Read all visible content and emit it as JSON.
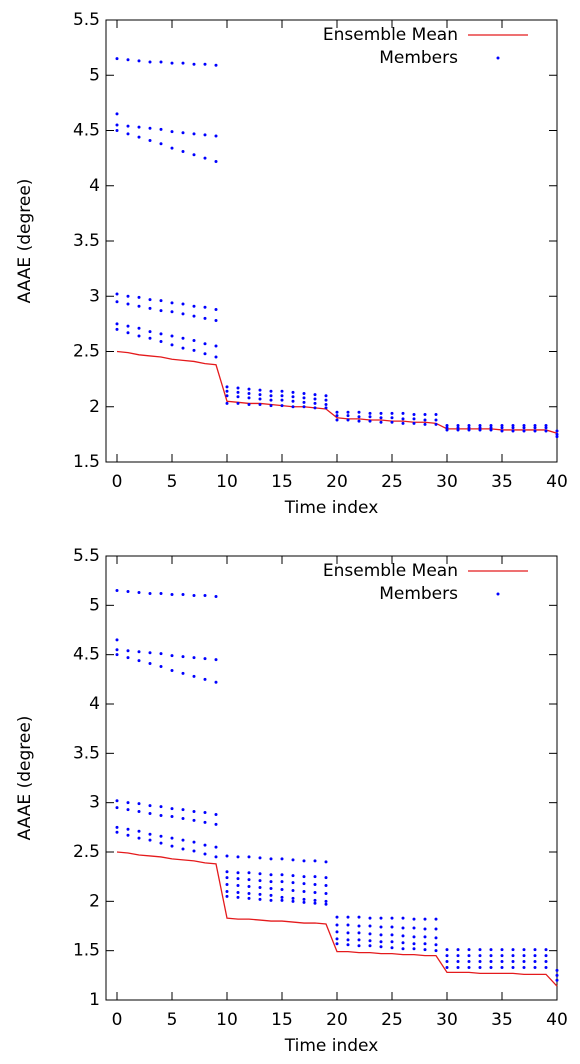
{
  "chart_data": [
    {
      "type": "line",
      "xlabel": "Time index",
      "ylabel": "AAAE (degree)",
      "xlim": [
        -1,
        40
      ],
      "ylim": [
        1.5,
        5.5
      ],
      "xticks": [
        0,
        5,
        10,
        15,
        20,
        25,
        30,
        35,
        40
      ],
      "yticks": [
        1.5,
        2,
        2.5,
        3,
        3.5,
        4,
        4.5,
        5,
        5.5
      ],
      "grid": false,
      "legend": "top-right",
      "series": [
        {
          "name": "Ensemble Mean",
          "type": "line",
          "color": "#e41a1c",
          "x": [
            0,
            1,
            2,
            3,
            4,
            5,
            6,
            7,
            8,
            9,
            10,
            11,
            12,
            13,
            14,
            15,
            16,
            17,
            18,
            19,
            20,
            21,
            22,
            23,
            24,
            25,
            26,
            27,
            28,
            29,
            30,
            31,
            32,
            33,
            34,
            35,
            36,
            37,
            38,
            39,
            40
          ],
          "values": [
            2.5,
            2.49,
            2.47,
            2.46,
            2.45,
            2.43,
            2.42,
            2.41,
            2.39,
            2.38,
            2.05,
            2.04,
            2.03,
            2.03,
            2.02,
            2.01,
            2.0,
            2.0,
            1.99,
            1.98,
            1.9,
            1.89,
            1.89,
            1.88,
            1.88,
            1.87,
            1.87,
            1.86,
            1.86,
            1.85,
            1.8,
            1.8,
            1.8,
            1.8,
            1.8,
            1.79,
            1.79,
            1.79,
            1.79,
            1.79,
            1.76
          ]
        },
        {
          "name": "Members",
          "type": "scatter",
          "color": "#0000ff",
          "x": [
            0,
            0,
            1,
            2,
            3,
            4,
            5,
            6,
            7,
            8,
            9,
            0,
            1,
            2,
            3,
            4,
            5,
            6,
            7,
            8,
            9,
            0,
            1,
            2,
            3,
            4,
            5,
            6,
            7,
            8,
            9,
            0,
            1,
            2,
            3,
            4,
            5,
            6,
            7,
            8,
            9,
            0,
            1,
            2,
            3,
            4,
            5,
            6,
            7,
            8,
            9,
            0,
            1,
            2,
            3,
            4,
            5,
            6,
            7,
            8,
            9,
            0,
            1,
            2,
            3,
            4,
            5,
            6,
            7,
            8,
            9,
            10,
            11,
            12,
            13,
            14,
            15,
            16,
            17,
            18,
            19,
            10,
            11,
            12,
            13,
            14,
            15,
            16,
            17,
            18,
            19,
            10,
            11,
            12,
            13,
            14,
            15,
            16,
            17,
            18,
            19,
            10,
            11,
            12,
            13,
            14,
            15,
            16,
            17,
            18,
            19,
            20,
            21,
            22,
            23,
            24,
            25,
            26,
            27,
            28,
            29,
            20,
            21,
            22,
            23,
            24,
            25,
            26,
            27,
            28,
            29,
            20,
            21,
            22,
            23,
            24,
            25,
            26,
            27,
            28,
            29,
            30,
            31,
            32,
            33,
            34,
            35,
            36,
            37,
            38,
            39,
            30,
            31,
            32,
            33,
            34,
            35,
            36,
            37,
            38,
            39,
            30,
            31,
            32,
            33,
            34,
            35,
            36,
            37,
            38,
            39,
            40,
            40,
            40
          ],
          "values": [
            4.65,
            5.15,
            5.14,
            5.13,
            5.12,
            5.12,
            5.11,
            5.11,
            5.1,
            5.1,
            5.09,
            4.55,
            4.54,
            4.53,
            4.52,
            4.51,
            4.49,
            4.48,
            4.47,
            4.46,
            4.45,
            4.5,
            4.47,
            4.44,
            4.41,
            4.38,
            4.34,
            4.31,
            4.28,
            4.25,
            4.22,
            3.02,
            3.0,
            2.99,
            2.97,
            2.96,
            2.94,
            2.93,
            2.91,
            2.9,
            2.88,
            2.95,
            2.93,
            2.91,
            2.89,
            2.87,
            2.86,
            2.84,
            2.82,
            2.8,
            2.78,
            2.75,
            2.73,
            2.71,
            2.68,
            2.66,
            2.64,
            2.62,
            2.6,
            2.57,
            2.55,
            2.7,
            2.67,
            2.64,
            2.62,
            2.59,
            2.56,
            2.53,
            2.51,
            2.48,
            2.45,
            2.18,
            2.17,
            2.16,
            2.15,
            2.14,
            2.14,
            2.13,
            2.12,
            2.11,
            2.1,
            2.14,
            2.13,
            2.12,
            2.11,
            2.1,
            2.1,
            2.09,
            2.08,
            2.07,
            2.06,
            2.1,
            2.09,
            2.08,
            2.07,
            2.06,
            2.06,
            2.05,
            2.04,
            2.03,
            2.02,
            2.03,
            2.03,
            2.02,
            2.02,
            2.01,
            2.01,
            2.0,
            2.0,
            1.99,
            1.99,
            1.95,
            1.95,
            1.95,
            1.94,
            1.94,
            1.94,
            1.94,
            1.93,
            1.93,
            1.93,
            1.92,
            1.92,
            1.91,
            1.91,
            1.9,
            1.9,
            1.89,
            1.89,
            1.88,
            1.88,
            1.88,
            1.88,
            1.87,
            1.87,
            1.86,
            1.86,
            1.85,
            1.85,
            1.84,
            1.84,
            1.83,
            1.83,
            1.83,
            1.83,
            1.83,
            1.83,
            1.83,
            1.83,
            1.83,
            1.83,
            1.81,
            1.81,
            1.81,
            1.81,
            1.81,
            1.81,
            1.81,
            1.81,
            1.81,
            1.81,
            1.79,
            1.79,
            1.79,
            1.79,
            1.79,
            1.78,
            1.78,
            1.78,
            1.78,
            1.78,
            1.78,
            1.75,
            1.73
          ]
        }
      ]
    },
    {
      "type": "line",
      "xlabel": "Time index",
      "ylabel": "AAAE (degree)",
      "xlim": [
        -1,
        40
      ],
      "ylim": [
        1,
        5.5
      ],
      "xticks": [
        0,
        5,
        10,
        15,
        20,
        25,
        30,
        35,
        40
      ],
      "yticks": [
        1,
        1.5,
        2,
        2.5,
        3,
        3.5,
        4,
        4.5,
        5,
        5.5
      ],
      "grid": false,
      "legend": "top-right",
      "series": [
        {
          "name": "Ensemble Mean",
          "type": "line",
          "color": "#e41a1c",
          "x": [
            0,
            1,
            2,
            3,
            4,
            5,
            6,
            7,
            8,
            9,
            10,
            11,
            12,
            13,
            14,
            15,
            16,
            17,
            18,
            19,
            20,
            21,
            22,
            23,
            24,
            25,
            26,
            27,
            28,
            29,
            30,
            31,
            32,
            33,
            34,
            35,
            36,
            37,
            38,
            39,
            40
          ],
          "values": [
            2.5,
            2.49,
            2.47,
            2.46,
            2.45,
            2.43,
            2.42,
            2.41,
            2.39,
            2.38,
            1.83,
            1.82,
            1.82,
            1.81,
            1.8,
            1.8,
            1.79,
            1.78,
            1.78,
            1.77,
            1.49,
            1.49,
            1.48,
            1.48,
            1.47,
            1.47,
            1.46,
            1.46,
            1.45,
            1.45,
            1.28,
            1.28,
            1.28,
            1.27,
            1.27,
            1.27,
            1.27,
            1.26,
            1.26,
            1.26,
            1.14
          ]
        },
        {
          "name": "Members",
          "type": "scatter",
          "color": "#0000ff",
          "x": [
            0,
            0,
            1,
            2,
            3,
            4,
            5,
            6,
            7,
            8,
            9,
            0,
            1,
            2,
            3,
            4,
            5,
            6,
            7,
            8,
            9,
            0,
            1,
            2,
            3,
            4,
            5,
            6,
            7,
            8,
            9,
            0,
            1,
            2,
            3,
            4,
            5,
            6,
            7,
            8,
            9,
            0,
            1,
            2,
            3,
            4,
            5,
            6,
            7,
            8,
            9,
            0,
            1,
            2,
            3,
            4,
            5,
            6,
            7,
            8,
            9,
            0,
            1,
            2,
            3,
            4,
            5,
            6,
            7,
            8,
            9,
            10,
            11,
            12,
            13,
            14,
            15,
            16,
            17,
            18,
            19,
            10,
            11,
            12,
            13,
            14,
            15,
            16,
            17,
            18,
            19,
            10,
            11,
            12,
            13,
            14,
            15,
            16,
            17,
            18,
            19,
            10,
            11,
            12,
            13,
            14,
            15,
            16,
            17,
            18,
            19,
            10,
            11,
            12,
            13,
            14,
            15,
            16,
            17,
            18,
            19,
            10,
            11,
            12,
            13,
            14,
            15,
            16,
            17,
            18,
            19,
            20,
            21,
            22,
            23,
            24,
            25,
            26,
            27,
            28,
            29,
            20,
            21,
            22,
            23,
            24,
            25,
            26,
            27,
            28,
            29,
            20,
            21,
            22,
            23,
            24,
            25,
            26,
            27,
            28,
            29,
            20,
            21,
            22,
            23,
            24,
            25,
            26,
            27,
            28,
            29,
            20,
            21,
            22,
            23,
            24,
            25,
            26,
            27,
            28,
            29,
            30,
            31,
            32,
            33,
            34,
            35,
            36,
            37,
            38,
            39,
            30,
            31,
            32,
            33,
            34,
            35,
            36,
            37,
            38,
            39,
            30,
            31,
            32,
            33,
            34,
            35,
            36,
            37,
            38,
            39,
            30,
            31,
            32,
            33,
            34,
            35,
            36,
            37,
            38,
            39,
            40,
            40,
            40
          ],
          "values": [
            4.65,
            5.15,
            5.14,
            5.13,
            5.12,
            5.12,
            5.11,
            5.11,
            5.1,
            5.1,
            5.09,
            4.55,
            4.54,
            4.53,
            4.52,
            4.51,
            4.49,
            4.48,
            4.47,
            4.46,
            4.45,
            4.5,
            4.47,
            4.44,
            4.41,
            4.38,
            4.34,
            4.31,
            4.28,
            4.25,
            4.22,
            3.02,
            3.0,
            2.99,
            2.97,
            2.96,
            2.94,
            2.93,
            2.91,
            2.9,
            2.88,
            2.95,
            2.93,
            2.91,
            2.89,
            2.87,
            2.86,
            2.84,
            2.82,
            2.8,
            2.78,
            2.75,
            2.73,
            2.71,
            2.68,
            2.66,
            2.64,
            2.62,
            2.6,
            2.57,
            2.55,
            2.7,
            2.67,
            2.64,
            2.62,
            2.59,
            2.56,
            2.53,
            2.51,
            2.48,
            2.45,
            2.46,
            2.45,
            2.45,
            2.44,
            2.43,
            2.43,
            2.42,
            2.41,
            2.41,
            2.4,
            2.3,
            2.29,
            2.29,
            2.28,
            2.27,
            2.27,
            2.26,
            2.25,
            2.25,
            2.24,
            2.24,
            2.23,
            2.22,
            2.21,
            2.2,
            2.2,
            2.19,
            2.18,
            2.17,
            2.16,
            2.17,
            2.16,
            2.15,
            2.14,
            2.13,
            2.12,
            2.11,
            2.1,
            2.09,
            2.08,
            2.1,
            2.09,
            2.08,
            2.07,
            2.06,
            2.04,
            2.03,
            2.02,
            2.01,
            2.0,
            2.05,
            2.04,
            2.03,
            2.02,
            2.01,
            2.01,
            2.0,
            1.99,
            1.98,
            1.97,
            1.84,
            1.84,
            1.84,
            1.83,
            1.83,
            1.83,
            1.83,
            1.82,
            1.82,
            1.82,
            1.76,
            1.76,
            1.75,
            1.75,
            1.74,
            1.74,
            1.73,
            1.73,
            1.72,
            1.72,
            1.69,
            1.68,
            1.68,
            1.67,
            1.66,
            1.66,
            1.65,
            1.64,
            1.64,
            1.63,
            1.62,
            1.61,
            1.61,
            1.6,
            1.59,
            1.59,
            1.58,
            1.57,
            1.57,
            1.56,
            1.57,
            1.56,
            1.55,
            1.55,
            1.54,
            1.53,
            1.52,
            1.52,
            1.51,
            1.5,
            1.51,
            1.51,
            1.51,
            1.51,
            1.51,
            1.51,
            1.51,
            1.51,
            1.51,
            1.51,
            1.45,
            1.45,
            1.45,
            1.45,
            1.45,
            1.45,
            1.45,
            1.45,
            1.45,
            1.45,
            1.39,
            1.39,
            1.39,
            1.39,
            1.39,
            1.39,
            1.39,
            1.39,
            1.39,
            1.39,
            1.33,
            1.33,
            1.33,
            1.33,
            1.33,
            1.33,
            1.33,
            1.33,
            1.33,
            1.33,
            1.3,
            1.25,
            1.2
          ]
        }
      ]
    }
  ]
}
